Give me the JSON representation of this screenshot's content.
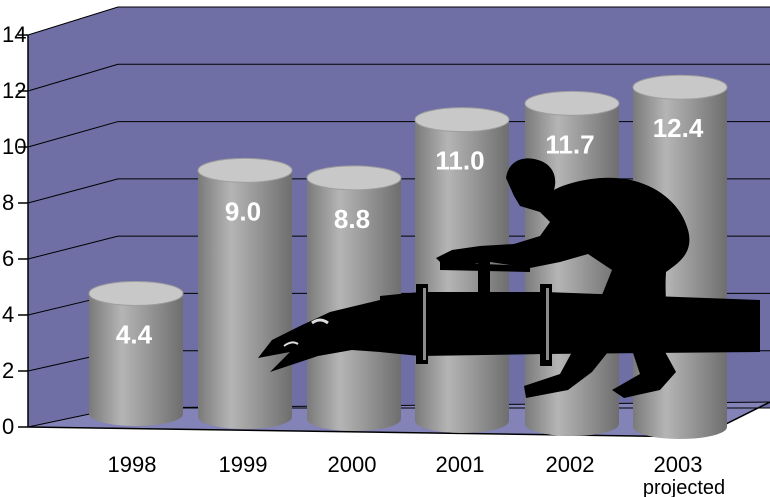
{
  "chart_data": {
    "type": "bar",
    "categories": [
      "1998",
      "1999",
      "2000",
      "2001",
      "2002",
      "2003"
    ],
    "category_sublabels": [
      "",
      "",
      "",
      "",
      "",
      "projected"
    ],
    "values": [
      4.4,
      9.0,
      8.8,
      11.0,
      11.7,
      12.4
    ],
    "value_labels": [
      "4.4",
      "9.0",
      "8.8",
      "11.0",
      "11.7",
      "12.4"
    ],
    "yticks": [
      "0",
      "2",
      "4",
      "6",
      "8",
      "10",
      "12",
      "14"
    ],
    "ylim": [
      0,
      14
    ],
    "grid": true,
    "style": "3d-cylinder",
    "illustration": "worker-turning-pipe-valve",
    "colors": {
      "wall": "#6f6fa6",
      "floor": "#8383b8",
      "bar": "#8c8c8c",
      "bar_highlight": "#bdbdbd",
      "bar_top": "#c8c8c8",
      "silhouette": "#000000",
      "value_label": "#ffffff"
    }
  }
}
